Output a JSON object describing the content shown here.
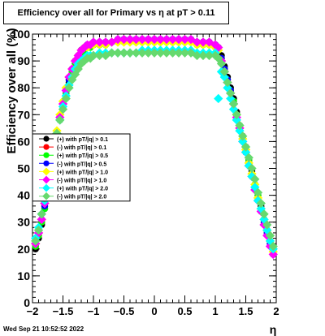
{
  "canvas": {
    "title": "Efficiency over all for Primary vs    η at pT > 0.11",
    "timestamp": "Wed Sep 21 10:52:52 2022"
  },
  "chart_data": {
    "type": "scatter",
    "title": "Efficiency over all for Primary vs    η at pT > 0.11",
    "xlabel": "η",
    "ylabel": "Efficiency over all (%)",
    "xlim": [
      -2,
      2
    ],
    "ylim": [
      0,
      100
    ],
    "x_ticks": [
      -2,
      -1.5,
      -1,
      -0.5,
      0,
      0.5,
      1,
      1.5,
      2
    ],
    "x_tick_labels": [
      "−2",
      "−1.5",
      "−1",
      "−0.5",
      "0",
      "0.5",
      "1",
      "1.5",
      "2"
    ],
    "y_ticks": [
      0,
      10,
      20,
      30,
      40,
      50,
      60,
      70,
      80,
      90,
      100
    ],
    "y_tick_labels": [
      "0",
      "10",
      "20",
      "30",
      "40",
      "50",
      "60",
      "70",
      "80",
      "90",
      "100"
    ],
    "legend_position": "left-middle",
    "x": [
      -1.95,
      -1.9,
      -1.85,
      -1.8,
      -1.75,
      -1.7,
      -1.65,
      -1.6,
      -1.55,
      -1.5,
      -1.45,
      -1.4,
      -1.35,
      -1.3,
      -1.25,
      -1.2,
      -1.15,
      -1.1,
      -1.05,
      -1.0,
      -0.9,
      -0.8,
      -0.7,
      -0.6,
      -0.5,
      -0.4,
      -0.3,
      -0.2,
      -0.1,
      0.0,
      0.1,
      0.2,
      0.3,
      0.4,
      0.5,
      0.6,
      0.7,
      0.8,
      0.9,
      1.0,
      1.05,
      1.1,
      1.15,
      1.2,
      1.25,
      1.3,
      1.35,
      1.4,
      1.45,
      1.5,
      1.55,
      1.6,
      1.65,
      1.7,
      1.75,
      1.8,
      1.85,
      1.9,
      1.95
    ],
    "series": [
      {
        "name": "(+) with pT/|q| > 0.1",
        "color": "#000000",
        "marker": "circle",
        "values": [
          20,
          24,
          29,
          35,
          41,
          48,
          55,
          62,
          68,
          73,
          78,
          82,
          86,
          89,
          92,
          94,
          95,
          95,
          96,
          96,
          96,
          97,
          97,
          98,
          98,
          98,
          98,
          98,
          98,
          98,
          98,
          98,
          98,
          98,
          98,
          98,
          97,
          97,
          97,
          96,
          95,
          92,
          88,
          84,
          80,
          76,
          71,
          66,
          62,
          58,
          53,
          49,
          44,
          40,
          36,
          31,
          27,
          23,
          19
        ]
      },
      {
        "name": "(-) with pT/|q| > 0.1",
        "color": "#ff0000",
        "marker": "circle",
        "values": [
          21,
          25,
          30,
          36,
          42,
          49,
          56,
          63,
          69,
          74,
          79,
          83,
          87,
          90,
          92,
          94,
          95,
          96,
          96,
          96,
          97,
          97,
          97,
          98,
          98,
          98,
          98,
          98,
          98,
          98,
          98,
          98,
          98,
          98,
          98,
          98,
          97,
          97,
          97,
          96,
          95,
          91,
          87,
          83,
          79,
          75,
          70,
          65,
          61,
          57,
          52,
          48,
          43,
          39,
          35,
          30,
          26,
          22,
          18
        ]
      },
      {
        "name": "(+) with pT/|q| > 0.5",
        "color": "#00ff00",
        "marker": "circle",
        "values": [
          21,
          25,
          30,
          35,
          42,
          49,
          56,
          62,
          68,
          73,
          78,
          83,
          86,
          89,
          91,
          93,
          94,
          95,
          95,
          96,
          96,
          96,
          97,
          97,
          97,
          97,
          97,
          97,
          97,
          97,
          97,
          97,
          97,
          97,
          97,
          97,
          96,
          96,
          96,
          95,
          94,
          91,
          87,
          83,
          79,
          75,
          70,
          66,
          61,
          57,
          53,
          48,
          44,
          40,
          35,
          31,
          27,
          23,
          19
        ]
      },
      {
        "name": "(-) with pT/|q| > 0.5",
        "color": "#0000ff",
        "marker": "circle",
        "values": [
          22,
          26,
          31,
          36,
          43,
          50,
          57,
          63,
          69,
          74,
          79,
          83,
          87,
          90,
          92,
          94,
          95,
          96,
          96,
          97,
          97,
          97,
          97,
          98,
          98,
          98,
          98,
          98,
          98,
          98,
          98,
          98,
          98,
          98,
          98,
          98,
          97,
          97,
          97,
          96,
          95,
          91,
          87,
          83,
          79,
          74,
          70,
          65,
          61,
          56,
          52,
          47,
          43,
          39,
          34,
          30,
          26,
          22,
          18
        ]
      },
      {
        "name": "(+) with pT/|q| > 1.0",
        "color": "#ffff00",
        "marker": "diamond",
        "values": [
          22,
          26,
          31,
          37,
          44,
          51,
          57,
          64,
          70,
          75,
          80,
          84,
          87,
          90,
          92,
          94,
          95,
          95,
          96,
          96,
          96,
          96,
          97,
          97,
          97,
          97,
          97,
          97,
          97,
          97,
          97,
          97,
          97,
          97,
          97,
          97,
          96,
          96,
          96,
          95,
          94,
          90,
          86,
          82,
          78,
          74,
          70,
          65,
          61,
          57,
          52,
          48,
          44,
          39,
          35,
          31,
          27,
          23,
          19
        ]
      },
      {
        "name": "(-) with pT/|q| > 1.0",
        "color": "#ff00ff",
        "marker": "diamond",
        "values": [
          22,
          26,
          31,
          37,
          43,
          50,
          57,
          63,
          69,
          74,
          79,
          84,
          87,
          90,
          92,
          94,
          95,
          96,
          96,
          97,
          97,
          97,
          97,
          98,
          98,
          98,
          98,
          98,
          98,
          98,
          98,
          98,
          98,
          98,
          98,
          98,
          97,
          97,
          97,
          96,
          95,
          90,
          86,
          82,
          78,
          74,
          69,
          65,
          60,
          56,
          51,
          47,
          42,
          38,
          34,
          29,
          25,
          21,
          18
        ]
      },
      {
        "name": "(+) with pT/|q| > 2.0",
        "color": "#00ffff",
        "marker": "diamond",
        "values": [
          24,
          28,
          33,
          38,
          45,
          51,
          57,
          63,
          68,
          73,
          77,
          81,
          84,
          87,
          89,
          90,
          91,
          92,
          92,
          92,
          93,
          93,
          93,
          93,
          93,
          93,
          93,
          94,
          94,
          94,
          94,
          94,
          94,
          94,
          94,
          94,
          93,
          93,
          93,
          93,
          76,
          86,
          84,
          80,
          76,
          72,
          68,
          64,
          60,
          56,
          51,
          47,
          43,
          38,
          35,
          31,
          27,
          23,
          20
        ]
      },
      {
        "name": "(-) with pT/|q| > 2.0",
        "color": "#66d96e",
        "marker": "diamond",
        "values": [
          23,
          27,
          33,
          39,
          45,
          52,
          58,
          63,
          68,
          72,
          76,
          80,
          83,
          85,
          87,
          89,
          90,
          91,
          91,
          92,
          92,
          92,
          93,
          93,
          93,
          93,
          93,
          93,
          93,
          93,
          93,
          93,
          93,
          93,
          93,
          93,
          92,
          92,
          92,
          92,
          91,
          89,
          86,
          82,
          78,
          74,
          70,
          66,
          62,
          58,
          54,
          50,
          46,
          41,
          37,
          33,
          29,
          25,
          21
        ]
      }
    ]
  }
}
